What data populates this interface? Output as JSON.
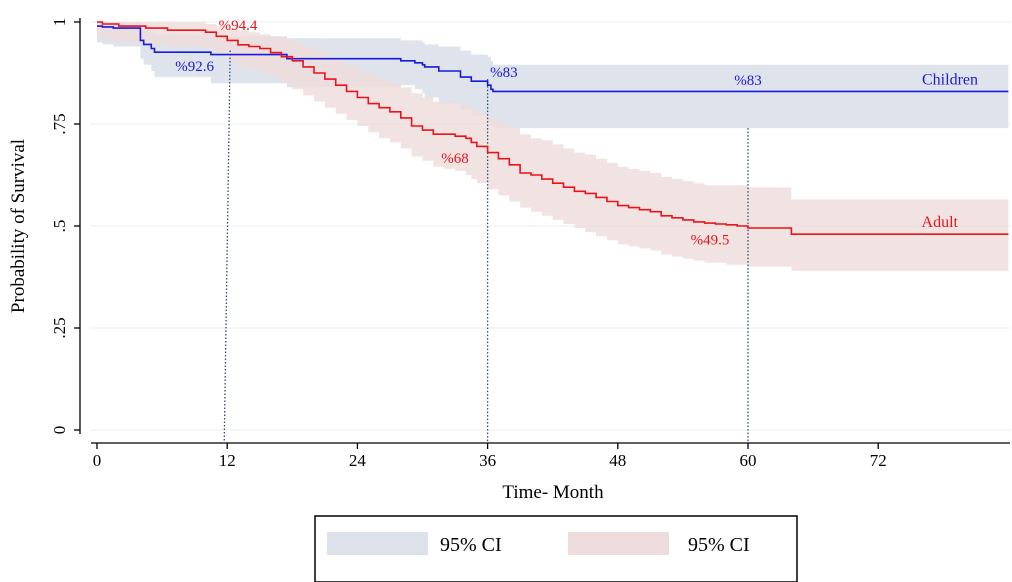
{
  "chart_data": {
    "type": "line",
    "title": "",
    "xlabel": "Time- Month",
    "ylabel": "Probability of Survival",
    "xlim": [
      0,
      84
    ],
    "ylim": [
      0,
      1
    ],
    "xticks": [
      0,
      12,
      24,
      36,
      48,
      60,
      72
    ],
    "xtick_labels": [
      "0",
      "12",
      "24",
      "36",
      "48",
      "60",
      "72"
    ],
    "yticks": [
      0,
      0.25,
      0.5,
      0.75,
      1
    ],
    "ytick_labels": [
      "0",
      ".25",
      ".5",
      ".75",
      "1"
    ],
    "grid": true,
    "step": true,
    "series": [
      {
        "name": "Children",
        "color": "#1a1adb",
        "ci_color": "#dde2ea",
        "x": [
          0,
          0.5,
          1.5,
          4,
          4.3,
          5,
          5.3,
          10.5,
          17.5,
          28,
          29.3,
          30,
          30.2,
          31.5,
          33.5,
          34.5,
          36,
          36.3,
          36.5,
          84
        ],
        "y": [
          0.99,
          0.988,
          0.985,
          0.955,
          0.945,
          0.935,
          0.926,
          0.92,
          0.91,
          0.905,
          0.9,
          0.895,
          0.89,
          0.88,
          0.865,
          0.855,
          0.845,
          0.835,
          0.83,
          0.83
        ],
        "ci_lower": [
          0.95,
          0.945,
          0.94,
          0.91,
          0.895,
          0.88,
          0.865,
          0.85,
          0.84,
          0.845,
          0.835,
          0.825,
          0.815,
          0.8,
          0.785,
          0.77,
          0.755,
          0.745,
          0.74,
          0.74
        ],
        "ci_upper": [
          1.0,
          1.0,
          0.998,
          0.985,
          0.98,
          0.975,
          0.97,
          0.965,
          0.96,
          0.955,
          0.955,
          0.95,
          0.945,
          0.94,
          0.93,
          0.92,
          0.915,
          0.905,
          0.895,
          0.895
        ]
      },
      {
        "name": "Adult",
        "color": "#e8141c",
        "ci_color": "#efdcdc",
        "x": [
          0,
          0.5,
          2,
          4.5,
          6.5,
          10,
          11,
          12,
          13,
          14,
          15,
          16,
          17,
          18,
          19,
          20,
          21,
          22,
          23,
          24,
          25,
          26,
          27,
          28,
          29,
          30,
          31,
          32,
          33,
          34,
          34.5,
          35,
          36,
          37,
          38,
          39,
          40,
          41,
          42,
          43,
          44,
          45,
          46,
          47,
          48,
          49,
          50,
          51,
          52,
          53,
          54,
          55,
          56,
          57,
          58,
          59,
          60,
          64,
          84
        ],
        "y": [
          1.0,
          0.995,
          0.99,
          0.985,
          0.98,
          0.975,
          0.965,
          0.955,
          0.944,
          0.94,
          0.935,
          0.925,
          0.915,
          0.905,
          0.89,
          0.875,
          0.86,
          0.845,
          0.83,
          0.815,
          0.8,
          0.79,
          0.78,
          0.765,
          0.745,
          0.735,
          0.725,
          0.725,
          0.72,
          0.715,
          0.705,
          0.695,
          0.68,
          0.665,
          0.65,
          0.63,
          0.625,
          0.615,
          0.605,
          0.595,
          0.585,
          0.58,
          0.57,
          0.56,
          0.55,
          0.545,
          0.54,
          0.535,
          0.525,
          0.52,
          0.515,
          0.51,
          0.507,
          0.505,
          0.503,
          0.5,
          0.495,
          0.48,
          0.48
        ],
        "ci_lower": [
          0.96,
          0.955,
          0.95,
          0.945,
          0.94,
          0.935,
          0.92,
          0.905,
          0.89,
          0.885,
          0.875,
          0.865,
          0.85,
          0.835,
          0.82,
          0.805,
          0.79,
          0.775,
          0.76,
          0.745,
          0.73,
          0.715,
          0.705,
          0.69,
          0.67,
          0.66,
          0.645,
          0.64,
          0.635,
          0.625,
          0.615,
          0.605,
          0.59,
          0.575,
          0.56,
          0.545,
          0.535,
          0.525,
          0.515,
          0.505,
          0.495,
          0.485,
          0.475,
          0.465,
          0.455,
          0.45,
          0.445,
          0.44,
          0.43,
          0.425,
          0.42,
          0.415,
          0.41,
          0.41,
          0.405,
          0.405,
          0.4,
          0.39,
          0.39
        ],
        "ci_upper": [
          1.0,
          1.0,
          1.0,
          1.0,
          1.0,
          0.995,
          0.99,
          0.985,
          0.98,
          0.975,
          0.97,
          0.965,
          0.96,
          0.95,
          0.94,
          0.93,
          0.915,
          0.905,
          0.895,
          0.88,
          0.87,
          0.86,
          0.85,
          0.84,
          0.825,
          0.815,
          0.805,
          0.805,
          0.8,
          0.795,
          0.785,
          0.775,
          0.765,
          0.75,
          0.74,
          0.725,
          0.715,
          0.71,
          0.7,
          0.69,
          0.68,
          0.675,
          0.665,
          0.655,
          0.645,
          0.64,
          0.635,
          0.63,
          0.62,
          0.615,
          0.61,
          0.605,
          0.6,
          0.6,
          0.6,
          0.6,
          0.595,
          0.565,
          0.565
        ]
      }
    ],
    "reference_lines": [
      12,
      36,
      60
    ],
    "annotations": [
      {
        "text": "%94.4",
        "x": 13,
        "y": 0.98,
        "series": "Adult"
      },
      {
        "text": "%92.6",
        "x": 9,
        "y": 0.88,
        "series": "Children"
      },
      {
        "text": "%83",
        "x": 37.5,
        "y": 0.865,
        "series": "Children"
      },
      {
        "text": "%83",
        "x": 60,
        "y": 0.845,
        "series": "Children"
      },
      {
        "text": "%68",
        "x": 33,
        "y": 0.655,
        "series": "Adult"
      },
      {
        "text": "%49.5",
        "x": 56.5,
        "y": 0.455,
        "series": "Adult"
      }
    ],
    "legend": {
      "position": "bottom",
      "entries": [
        {
          "label": "95% CI",
          "color": "#dde2ea"
        },
        {
          "label": "95% CI",
          "color": "#efdcdc"
        }
      ]
    }
  }
}
